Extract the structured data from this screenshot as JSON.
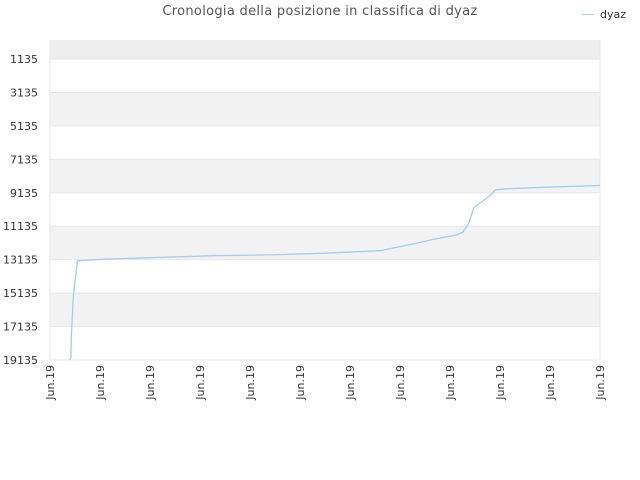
{
  "chart_data": {
    "type": "line",
    "title": "Cronologia della posizione in classifica di dyaz",
    "xlabel": "",
    "ylabel": "",
    "y_inverted": true,
    "ylim": [
      1135,
      19135
    ],
    "y_ticks": [
      "1135",
      "3135",
      "5135",
      "7135",
      "9135",
      "11135",
      "13135",
      "15135",
      "17135",
      "19135"
    ],
    "x_ticks": [
      "Jun.19",
      "Jun.19",
      "Jun.19",
      "Jun.19",
      "Jun.19",
      "Jun.19",
      "Jun.19",
      "Jun.19",
      "Jun.19",
      "Jun.19",
      "Jun.19",
      "Jun.19"
    ],
    "legend": {
      "position": "top-right"
    },
    "grid": true,
    "colors": {
      "line": "#a5cbee",
      "band": "#f2f2f2",
      "top_band": "#eeeeee",
      "grid": "#e6e6e6"
    },
    "series": [
      {
        "name": "dyaz",
        "x": [
          0.035,
          0.038,
          0.039,
          0.042,
          0.045,
          0.05,
          0.1,
          0.2,
          0.3,
          0.4,
          0.5,
          0.6,
          0.66,
          0.7,
          0.74,
          0.75,
          0.76,
          0.765,
          0.77,
          0.78,
          0.8,
          0.81,
          0.83,
          0.9,
          1.0
        ],
        "y": [
          19135,
          19000,
          17500,
          15500,
          14500,
          13200,
          13100,
          13000,
          12900,
          12850,
          12750,
          12600,
          12200,
          11900,
          11650,
          11500,
          11050,
          10600,
          10050,
          9800,
          9300,
          8960,
          8900,
          8800,
          8700
        ]
      }
    ]
  }
}
